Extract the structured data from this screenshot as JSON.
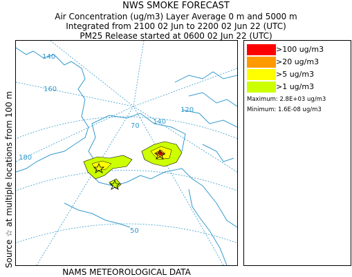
{
  "title": "NWS SMOKE FORECAST",
  "subtitle1": "Air Concentration (ug/m3) Layer Average    0 m and  5000 m",
  "subtitle2": "Integrated from 2100 02 Jun to 2200 02 Jun 22 (UTC)",
  "subtitle3": "PM25 Release started at 0600 02 Jun 22 (UTC)",
  "side_label": "Source ☆   at multiple locations     from   100 m",
  "footer": "NAMS METEOROLOGICAL DATA",
  "legend": {
    "items": [
      {
        "label": ">100 ug/m3",
        "color": "#ff0000"
      },
      {
        "label": ">20 ug/m3",
        "color": "#ff9900"
      },
      {
        "label": ">5 ug/m3",
        "color": "#ffff00"
      },
      {
        "label": ">1 ug/m3",
        "color": "#ccff00"
      }
    ],
    "maximum": "Maximum: 2.8E+03 ug/m3",
    "minimum": "Minimum: 1.6E-08 ug/m3"
  },
  "map": {
    "grid_labels": [
      "140",
      "160",
      "180",
      "70",
      "140",
      "120",
      "50"
    ],
    "coast_color": "#3399cc",
    "grid_color": "#3399cc",
    "source_marker": "star-icon"
  }
}
